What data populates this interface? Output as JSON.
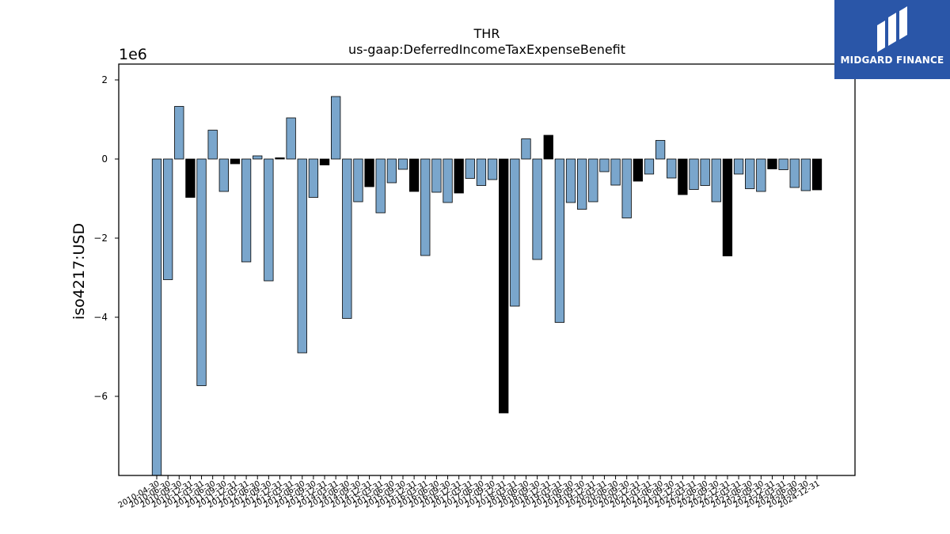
{
  "chart_data": {
    "type": "bar",
    "title": "THR",
    "subtitle": "us-gaap:DeferredIncomeTaxExpenseBenefit",
    "ylabel": "iso4217:USD",
    "xlabel": "",
    "y_scale_label": "1e6",
    "ylim": [
      -8.0,
      2.4
    ],
    "yticks": [
      -6,
      -4,
      -2,
      0,
      2
    ],
    "categories": [
      "2010-04-30",
      "2010-06-30",
      "2010-09-30",
      "2010-12-31",
      "2011-03-31",
      "2011-06-30",
      "2011-09-30",
      "2011-12-31",
      "2012-03-31",
      "2012-06-30",
      "2012-09-30",
      "2012-12-31",
      "2013-03-31",
      "2013-06-30",
      "2013-09-30",
      "2013-12-31",
      "2014-03-31",
      "2014-06-30",
      "2014-09-30",
      "2014-12-31",
      "2015-03-31",
      "2015-06-30",
      "2015-09-30",
      "2015-12-31",
      "2016-03-31",
      "2016-06-30",
      "2016-09-30",
      "2016-12-31",
      "2017-03-31",
      "2017-06-30",
      "2017-09-30",
      "2017-12-31",
      "2018-03-31",
      "2018-06-30",
      "2018-09-30",
      "2018-12-31",
      "2019-03-31",
      "2019-06-30",
      "2019-09-30",
      "2019-12-31",
      "2020-03-31",
      "2020-06-30",
      "2020-09-30",
      "2020-12-31",
      "2021-03-31",
      "2021-06-30",
      "2021-09-30",
      "2021-12-31",
      "2022-03-31",
      "2022-06-30",
      "2022-09-30",
      "2022-12-31",
      "2023-03-31",
      "2023-06-30",
      "2023-09-30",
      "2023-12-31",
      "2024-03-31",
      "2024-06-30",
      "2024-09-30",
      "2024-12-31"
    ],
    "values": [
      -8.0,
      -3.05,
      1.33,
      -0.97,
      -5.73,
      0.73,
      -0.82,
      -0.12,
      -2.6,
      0.08,
      -3.08,
      0.03,
      1.04,
      -4.9,
      -0.97,
      -0.15,
      1.58,
      -4.03,
      -1.08,
      -0.7,
      -1.36,
      -0.6,
      -0.26,
      -0.82,
      -2.44,
      -0.84,
      -1.1,
      -0.86,
      -0.49,
      -0.67,
      -0.52,
      -6.42,
      -3.72,
      0.51,
      -2.54,
      0.6,
      -4.13,
      -1.1,
      -1.27,
      -1.08,
      -0.32,
      -0.66,
      -1.49,
      -0.56,
      -0.38,
      0.47,
      -0.48,
      -0.9,
      -0.77,
      -0.67,
      -1.08,
      -2.45,
      -0.38,
      -0.75,
      -0.82,
      -0.25,
      -0.27,
      -0.72,
      -0.8,
      -0.78
    ],
    "highlighted": [
      false,
      false,
      false,
      true,
      false,
      false,
      false,
      true,
      false,
      false,
      false,
      true,
      false,
      false,
      false,
      true,
      false,
      false,
      false,
      true,
      false,
      false,
      false,
      true,
      false,
      false,
      false,
      true,
      false,
      false,
      false,
      true,
      false,
      false,
      false,
      true,
      false,
      false,
      false,
      false,
      false,
      false,
      false,
      true,
      false,
      false,
      false,
      true,
      false,
      false,
      false,
      true,
      false,
      false,
      false,
      true,
      false,
      false,
      false,
      true
    ],
    "colors": {
      "bar": "#7aa6cc",
      "highlight": "#000000",
      "edge": "#000000"
    },
    "grid": false,
    "legend": "none"
  },
  "branding": {
    "name": "MIDGARD FINANCE",
    "bg_color": "#2a56a8"
  }
}
